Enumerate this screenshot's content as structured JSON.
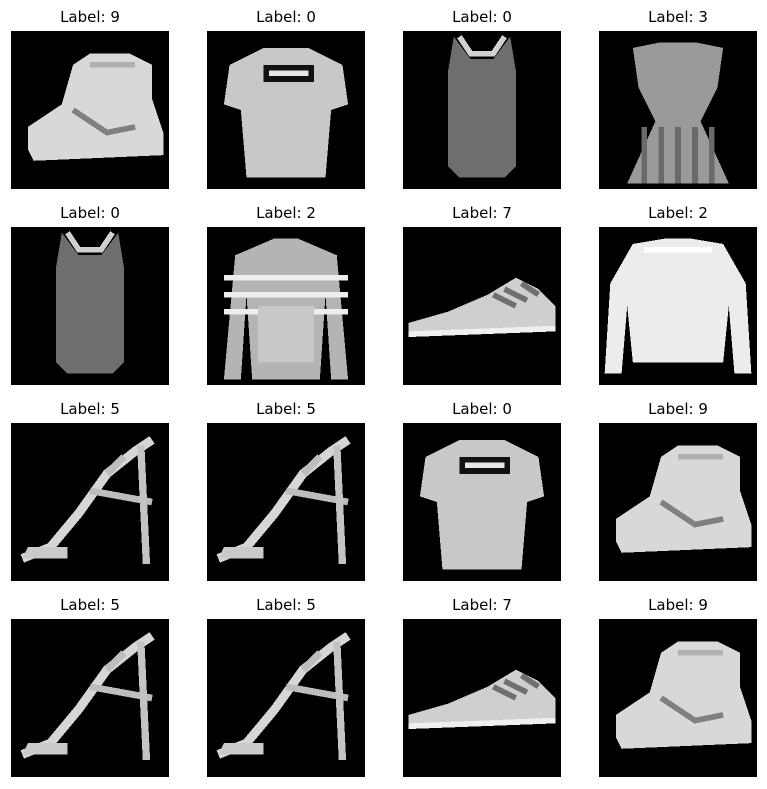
{
  "figure": {
    "panels": [
      {
        "label": "Label: 9",
        "item": "ankle-boot"
      },
      {
        "label": "Label: 0",
        "item": "t-shirt"
      },
      {
        "label": "Label: 0",
        "item": "tank-top"
      },
      {
        "label": "Label: 3",
        "item": "dress"
      },
      {
        "label": "Label: 0",
        "item": "tank-top"
      },
      {
        "label": "Label: 2",
        "item": "striped-pullover"
      },
      {
        "label": "Label: 7",
        "item": "sneaker"
      },
      {
        "label": "Label: 2",
        "item": "pullover"
      },
      {
        "label": "Label: 5",
        "item": "sandal"
      },
      {
        "label": "Label: 5",
        "item": "sandal"
      },
      {
        "label": "Label: 0",
        "item": "t-shirt"
      },
      {
        "label": "Label: 9",
        "item": "ankle-boot"
      },
      {
        "label": "Label: 5",
        "item": "sandal"
      },
      {
        "label": "Label: 5",
        "item": "sandal"
      },
      {
        "label": "Label: 7",
        "item": "sneaker"
      },
      {
        "label": "Label: 9",
        "item": "ankle-boot"
      }
    ]
  }
}
